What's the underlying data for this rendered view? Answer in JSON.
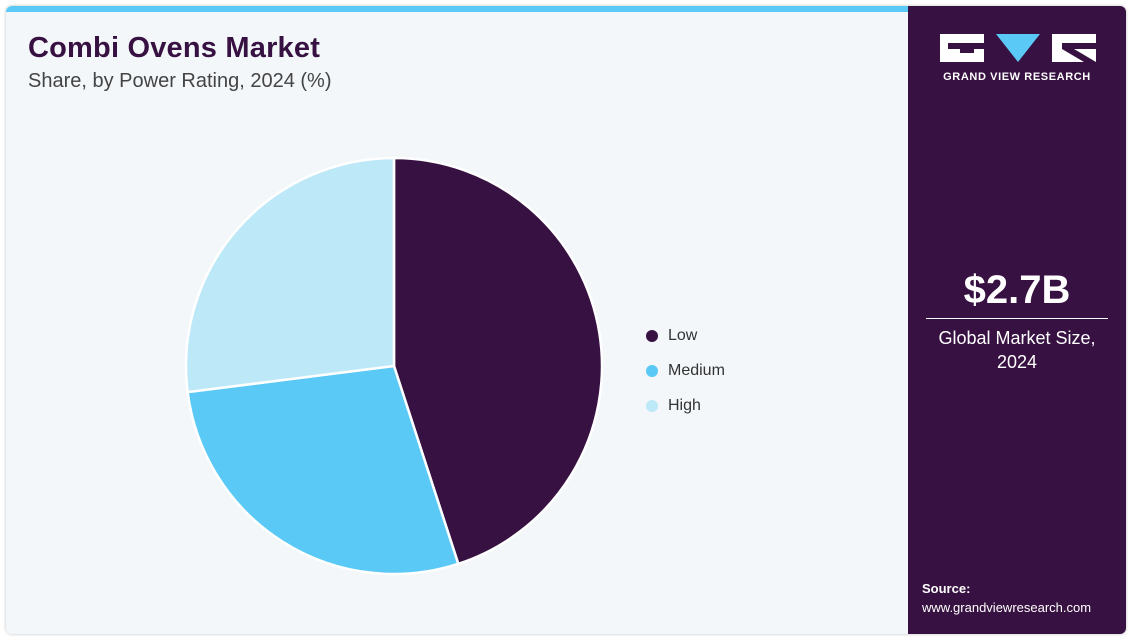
{
  "header": {
    "title": "Combi Ovens Market",
    "subtitle": "Share, by Power Rating, 2024 (%)"
  },
  "chart_data": {
    "type": "pie",
    "title": "Combi Ovens Market",
    "subtitle": "Share, by Power Rating, 2024 (%)",
    "categories": [
      "Low",
      "Medium",
      "High"
    ],
    "values": [
      45,
      28,
      27
    ],
    "colors": [
      "#371141",
      "#5bc9f5",
      "#bde8f8"
    ],
    "legend_position": "right"
  },
  "sidebar": {
    "brand": "GRAND VIEW RESEARCH",
    "market_size": "$2.7B",
    "market_size_label": "Global Market Size, 2024",
    "source_label": "Source:",
    "source_url": "www.grandviewresearch.com"
  }
}
